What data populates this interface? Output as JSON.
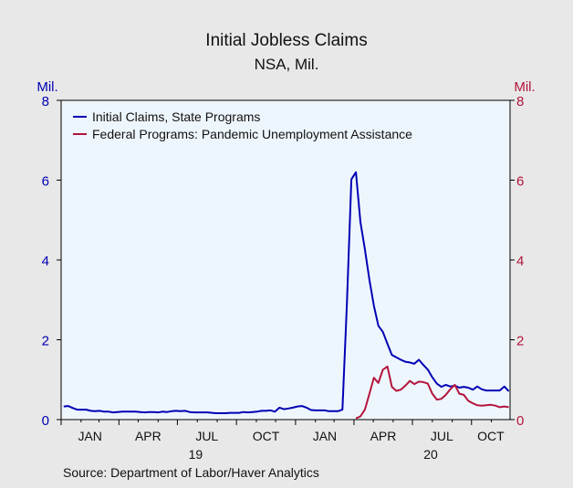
{
  "chart_data": {
    "type": "line",
    "title": "Initial Jobless Claims",
    "subtitle": "NSA, Mil.",
    "left_unit": "Mil.",
    "right_unit": "Mil.",
    "source": "Source:  Department of Labor/Haver Analytics",
    "ylim": [
      0,
      8
    ],
    "y_ticks": [
      "0",
      "2",
      "4",
      "6",
      "8"
    ],
    "x_tick_labels": [
      "JAN",
      "APR",
      "JUL",
      "OCT",
      "JAN",
      "APR",
      "JUL",
      "OCT"
    ],
    "x_tick_dates": [
      "2019-01-01",
      "2019-04-01",
      "2019-07-01",
      "2019-10-01",
      "2020-01-01",
      "2020-04-01",
      "2020-07-01",
      "2020-10-01"
    ],
    "year_labels": [
      {
        "text": "19",
        "date": "2019-07-01"
      },
      {
        "text": "20",
        "date": "2020-07-01"
      }
    ],
    "xlim": [
      "2019-01-01",
      "2020-11-30"
    ],
    "grid": false,
    "legend_position": "top-left",
    "colors": {
      "state": "#0000b4",
      "federal": "#b4143c",
      "plot_bg": "#eef6fd",
      "page_bg": "#e8e8e8"
    },
    "series": [
      {
        "name": "Initial Claims, State Programs",
        "color": "#0000b4",
        "points": [
          [
            "2019-01-05",
            0.33
          ],
          [
            "2019-01-12",
            0.34
          ],
          [
            "2019-01-19",
            0.29
          ],
          [
            "2019-01-26",
            0.25
          ],
          [
            "2019-02-02",
            0.25
          ],
          [
            "2019-02-09",
            0.25
          ],
          [
            "2019-02-16",
            0.22
          ],
          [
            "2019-02-23",
            0.21
          ],
          [
            "2019-03-02",
            0.22
          ],
          [
            "2019-03-09",
            0.2
          ],
          [
            "2019-03-16",
            0.2
          ],
          [
            "2019-03-23",
            0.18
          ],
          [
            "2019-03-30",
            0.19
          ],
          [
            "2019-04-06",
            0.2
          ],
          [
            "2019-04-13",
            0.2
          ],
          [
            "2019-04-20",
            0.2
          ],
          [
            "2019-04-27",
            0.2
          ],
          [
            "2019-05-04",
            0.19
          ],
          [
            "2019-05-11",
            0.18
          ],
          [
            "2019-05-18",
            0.19
          ],
          [
            "2019-05-25",
            0.19
          ],
          [
            "2019-06-01",
            0.18
          ],
          [
            "2019-06-08",
            0.2
          ],
          [
            "2019-06-15",
            0.19
          ],
          [
            "2019-06-22",
            0.21
          ],
          [
            "2019-06-29",
            0.22
          ],
          [
            "2019-07-06",
            0.21
          ],
          [
            "2019-07-13",
            0.22
          ],
          [
            "2019-07-20",
            0.19
          ],
          [
            "2019-07-27",
            0.18
          ],
          [
            "2019-08-03",
            0.18
          ],
          [
            "2019-08-10",
            0.18
          ],
          [
            "2019-08-17",
            0.18
          ],
          [
            "2019-08-24",
            0.17
          ],
          [
            "2019-08-31",
            0.16
          ],
          [
            "2019-09-07",
            0.16
          ],
          [
            "2019-09-14",
            0.16
          ],
          [
            "2019-09-21",
            0.17
          ],
          [
            "2019-09-28",
            0.17
          ],
          [
            "2019-10-05",
            0.17
          ],
          [
            "2019-10-12",
            0.19
          ],
          [
            "2019-10-19",
            0.18
          ],
          [
            "2019-10-26",
            0.19
          ],
          [
            "2019-11-02",
            0.2
          ],
          [
            "2019-11-09",
            0.22
          ],
          [
            "2019-11-16",
            0.22
          ],
          [
            "2019-11-23",
            0.23
          ],
          [
            "2019-11-30",
            0.2
          ],
          [
            "2019-12-07",
            0.3
          ],
          [
            "2019-12-14",
            0.26
          ],
          [
            "2019-12-21",
            0.28
          ],
          [
            "2019-12-28",
            0.3
          ],
          [
            "2020-01-04",
            0.33
          ],
          [
            "2020-01-11",
            0.34
          ],
          [
            "2020-01-18",
            0.3
          ],
          [
            "2020-01-25",
            0.24
          ],
          [
            "2020-02-01",
            0.23
          ],
          [
            "2020-02-08",
            0.23
          ],
          [
            "2020-02-15",
            0.23
          ],
          [
            "2020-02-22",
            0.21
          ],
          [
            "2020-02-29",
            0.21
          ],
          [
            "2020-03-07",
            0.21
          ],
          [
            "2020-03-14",
            0.25
          ],
          [
            "2020-03-21",
            2.9
          ],
          [
            "2020-03-28",
            6.02
          ],
          [
            "2020-04-04",
            6.2
          ],
          [
            "2020-04-11",
            4.95
          ],
          [
            "2020-04-18",
            4.27
          ],
          [
            "2020-04-25",
            3.5
          ],
          [
            "2020-05-02",
            2.85
          ],
          [
            "2020-05-09",
            2.35
          ],
          [
            "2020-05-16",
            2.2
          ],
          [
            "2020-05-23",
            1.9
          ],
          [
            "2020-05-30",
            1.62
          ],
          [
            "2020-06-06",
            1.56
          ],
          [
            "2020-06-13",
            1.5
          ],
          [
            "2020-06-20",
            1.45
          ],
          [
            "2020-06-27",
            1.43
          ],
          [
            "2020-07-04",
            1.4
          ],
          [
            "2020-07-11",
            1.5
          ],
          [
            "2020-07-18",
            1.37
          ],
          [
            "2020-07-25",
            1.25
          ],
          [
            "2020-08-01",
            1.06
          ],
          [
            "2020-08-08",
            0.9
          ],
          [
            "2020-08-15",
            0.82
          ],
          [
            "2020-08-22",
            0.87
          ],
          [
            "2020-08-29",
            0.83
          ],
          [
            "2020-09-05",
            0.85
          ],
          [
            "2020-09-12",
            0.8
          ],
          [
            "2020-09-19",
            0.82
          ],
          [
            "2020-09-26",
            0.8
          ],
          [
            "2020-10-03",
            0.75
          ],
          [
            "2020-10-10",
            0.83
          ],
          [
            "2020-10-17",
            0.76
          ],
          [
            "2020-10-24",
            0.73
          ],
          [
            "2020-10-31",
            0.73
          ],
          [
            "2020-11-07",
            0.73
          ],
          [
            "2020-11-14",
            0.73
          ],
          [
            "2020-11-21",
            0.83
          ],
          [
            "2020-11-28",
            0.71
          ]
        ]
      },
      {
        "name": "Federal Programs: Pandemic Unemployment Assistance",
        "color": "#b4143c",
        "points": [
          [
            "2020-04-04",
            0.03
          ],
          [
            "2020-04-11",
            0.08
          ],
          [
            "2020-04-18",
            0.25
          ],
          [
            "2020-04-25",
            0.65
          ],
          [
            "2020-05-02",
            1.05
          ],
          [
            "2020-05-09",
            0.92
          ],
          [
            "2020-05-16",
            1.25
          ],
          [
            "2020-05-23",
            1.33
          ],
          [
            "2020-05-30",
            0.82
          ],
          [
            "2020-06-06",
            0.72
          ],
          [
            "2020-06-13",
            0.75
          ],
          [
            "2020-06-20",
            0.85
          ],
          [
            "2020-06-27",
            0.97
          ],
          [
            "2020-07-04",
            0.89
          ],
          [
            "2020-07-11",
            0.95
          ],
          [
            "2020-07-18",
            0.94
          ],
          [
            "2020-07-25",
            0.9
          ],
          [
            "2020-08-01",
            0.65
          ],
          [
            "2020-08-08",
            0.5
          ],
          [
            "2020-08-15",
            0.52
          ],
          [
            "2020-08-22",
            0.62
          ],
          [
            "2020-08-29",
            0.76
          ],
          [
            "2020-09-05",
            0.87
          ],
          [
            "2020-09-12",
            0.65
          ],
          [
            "2020-09-19",
            0.62
          ],
          [
            "2020-09-26",
            0.47
          ],
          [
            "2020-10-03",
            0.41
          ],
          [
            "2020-10-10",
            0.36
          ],
          [
            "2020-10-17",
            0.35
          ],
          [
            "2020-10-24",
            0.36
          ],
          [
            "2020-10-31",
            0.37
          ],
          [
            "2020-11-07",
            0.35
          ],
          [
            "2020-11-14",
            0.31
          ],
          [
            "2020-11-21",
            0.33
          ],
          [
            "2020-11-28",
            0.31
          ]
        ]
      }
    ]
  }
}
